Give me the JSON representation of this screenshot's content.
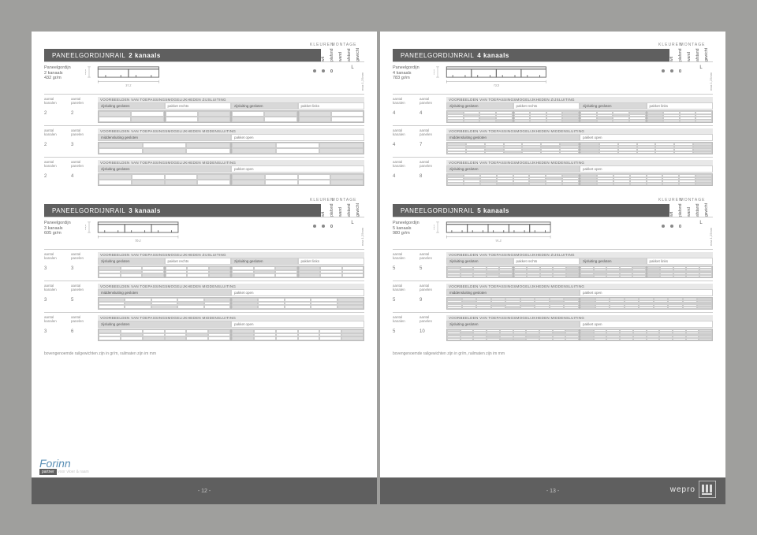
{
  "group_labels": {
    "kleuren": "KLEUREN",
    "montage": "MONTAGE"
  },
  "col_headers": [
    "wit",
    "plafond",
    "wand",
    "afstand",
    "gewicht"
  ],
  "mm_note": "max 1,25mm",
  "L": "L",
  "cfg_headers": {
    "aantal_kanalen": "aantal\nkanalen",
    "aantal_panelen": "aantal\npanelen",
    "title_zij": "VOORBEELDEN VAN TOEPASSINGSMOGELIJKHEDEN ZIJSLUITING",
    "title_mid": "VOORBEELDEN VAN TOEPASSINGSMOGELIJKHEDEN MIDDENSLUITING",
    "zij_gesloten": "zijsluiting gesloten",
    "pakket_rechts": "pakket rechts",
    "pakket_links": "pakket links",
    "mid_gesloten": "middensluiting gesloten",
    "pakket_open": "pakket open"
  },
  "footnote": "bovengenoemde railgewichten zijn in gr/m, railmaten zijn im mm",
  "page_left": "- 12 -",
  "page_right": "- 13 -",
  "forinn": {
    "name": "Forinn",
    "tag1": "partner",
    "tag2": "voor vloer & raam"
  },
  "wepro": "wepro",
  "products": [
    {
      "title_prefix": "PANEELGORDIJNRAIL",
      "title_bold": "2 kanaals",
      "label": "Paneelgordijn\n2 kanaals\n432 gr/m",
      "channels": 2,
      "width_mm": "37,2",
      "height_mm": "14,6",
      "configs": [
        {
          "type": "zij4",
          "k": 2,
          "p": 2,
          "cols": 2
        },
        {
          "type": "mid2",
          "k": 2,
          "p": 3,
          "cols": 3
        },
        {
          "type": "mid2b",
          "k": 2,
          "p": 4,
          "cols": 4
        }
      ]
    },
    {
      "title_prefix": "PANEELGORDIJNRAIL",
      "title_bold": "4 kanaals",
      "label": "Paneelgordijn\n4 kanaals\n783 gr/m",
      "channels": 4,
      "width_mm": "73,5",
      "height_mm": "14,6",
      "configs": [
        {
          "type": "zij4",
          "k": 4,
          "p": 4,
          "cols": 4
        },
        {
          "type": "mid2",
          "k": 4,
          "p": 7,
          "cols": 7
        },
        {
          "type": "mid2b",
          "k": 4,
          "p": 8,
          "cols": 8
        }
      ]
    },
    {
      "title_prefix": "PANEELGORDIJNRAIL",
      "title_bold": "3 kanaals",
      "label": "Paneelgordijn\n3 kanaals\n605 gr/m",
      "channels": 3,
      "width_mm": "55,2",
      "height_mm": "14,6",
      "configs": [
        {
          "type": "zij4",
          "k": 3,
          "p": 3,
          "cols": 3
        },
        {
          "type": "mid2",
          "k": 3,
          "p": 5,
          "cols": 5
        },
        {
          "type": "mid2b",
          "k": 3,
          "p": 6,
          "cols": 6
        }
      ]
    },
    {
      "title_prefix": "PANEELGORDIJNRAIL",
      "title_bold": "5 kanaals",
      "label": "Paneelgordijn\n5 kanaals\n980 gr/m",
      "channels": 5,
      "width_mm": "91,2",
      "height_mm": "14,6",
      "configs": [
        {
          "type": "zij4",
          "k": 5,
          "p": 5,
          "cols": 5
        },
        {
          "type": "mid2",
          "k": 5,
          "p": 9,
          "cols": 9
        },
        {
          "type": "mid2b",
          "k": 5,
          "p": 10,
          "cols": 10
        }
      ]
    }
  ]
}
